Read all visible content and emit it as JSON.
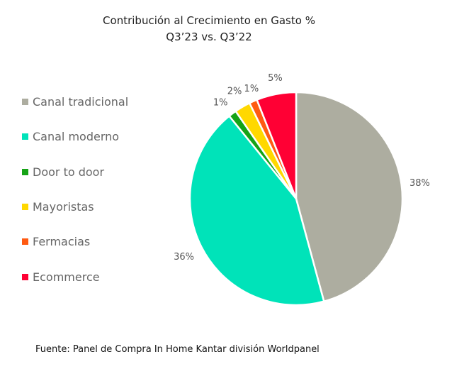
{
  "chart_data": {
    "type": "pie",
    "title": "Contribución al Crecimiento en Gasto %",
    "subtitle": "Q3’23 vs. Q3’22",
    "categories": [
      "Canal tradicional",
      "Canal moderno",
      "Door to door",
      "Mayoristas",
      "Fermacias",
      "Ecommerce"
    ],
    "values": [
      38,
      36,
      1,
      2,
      1,
      5
    ],
    "data_labels": [
      "38%",
      "36%",
      "1%",
      "2%",
      "1%",
      "5%"
    ],
    "colors": [
      "#adada0",
      "#00e3b9",
      "#16a316",
      "#ffd800",
      "#ff5a12",
      "#ff0034"
    ],
    "legend_position": "left"
  },
  "source": "Fuente: Panel de Compra In Home Kantar división Worldpanel"
}
